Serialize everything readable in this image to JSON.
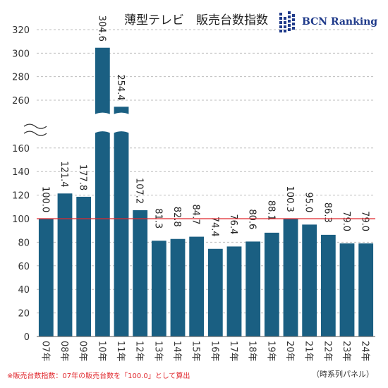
{
  "chart_data": {
    "type": "bar",
    "title": "薄型テレビ　販売台数指数",
    "categories": [
      "07年",
      "08年",
      "09年",
      "10年",
      "11年",
      "12年",
      "13年",
      "14年",
      "15年",
      "16年",
      "17年",
      "18年",
      "19年",
      "20年",
      "21年",
      "22年",
      "23年",
      "24年"
    ],
    "values": [
      100.0,
      121.4,
      177.8,
      304.6,
      254.4,
      107.2,
      81.3,
      82.8,
      84.7,
      74.4,
      76.4,
      80.6,
      88.1,
      100.3,
      95.0,
      86.3,
      79.0,
      79.0
    ],
    "value_labels": [
      "100.0",
      "121.4",
      "177.8",
      "304.6",
      "254.4",
      "107.2",
      "81.3",
      "82.8",
      "84.7",
      "74.4",
      "76.4",
      "80.6",
      "88.1",
      "100.3",
      "95.0",
      "86.3",
      "79.0",
      "79.0"
    ],
    "y_ticks_lower": [
      0,
      20,
      40,
      60,
      80,
      100,
      120,
      140,
      160
    ],
    "y_ticks_upper": [
      260,
      280,
      300,
      320
    ],
    "ylim_lower": [
      0,
      170
    ],
    "ylim_upper": [
      250,
      320
    ],
    "axis_break": true,
    "reference_line": 100,
    "bar_color": "#1a5f82",
    "reference_line_color": "#e0282e",
    "grid": true,
    "xlabel": "",
    "ylabel": ""
  },
  "brand": {
    "name": "BCN Ranking",
    "logo_color": "#1f3a8a",
    "icon": "bcn-grid-logo-icon"
  },
  "footnote": "※販売台数指数：07年の販売台数を「100.0」として算出",
  "panel_note": "（時系列パネル）"
}
